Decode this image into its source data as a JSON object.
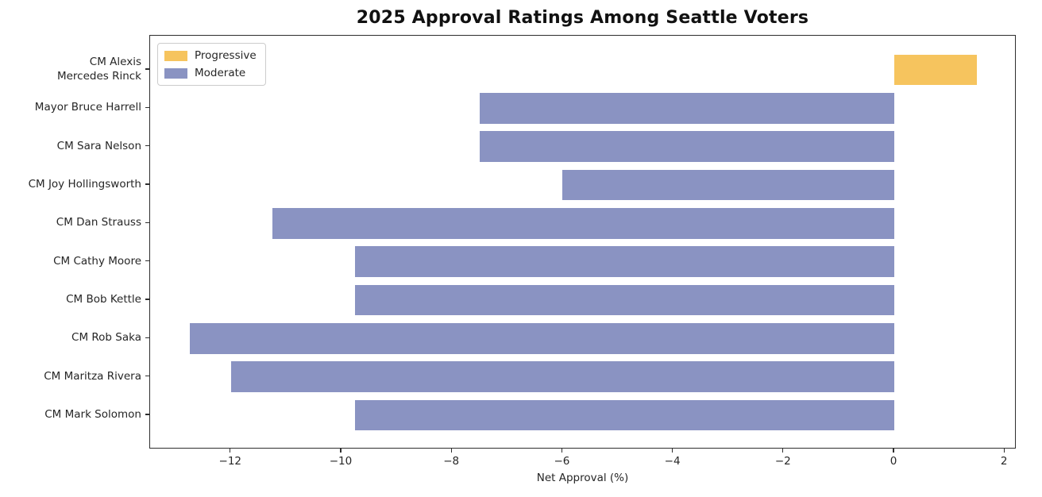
{
  "chart_data": {
    "type": "bar",
    "orientation": "horizontal",
    "title": "2025 Approval Ratings Among Seattle Voters",
    "xlabel": "Net Approval (%)",
    "ylabel": "",
    "categories": [
      "CM Alexis\nMercedes Rinck",
      "Mayor Bruce Harrell",
      "CM Sara Nelson",
      "CM Joy Hollingsworth",
      "CM Dan Strauss",
      "CM Cathy Moore",
      "CM Bob Kettle",
      "CM Rob Saka",
      "CM Maritza Rivera",
      "CM Mark Solomon"
    ],
    "values": [
      1.5,
      -7.5,
      -7.5,
      -6.0,
      -11.25,
      -9.75,
      -9.75,
      -12.75,
      -12.0,
      -9.75
    ],
    "bar_groups": [
      "Progressive",
      "Moderate",
      "Moderate",
      "Moderate",
      "Moderate",
      "Moderate",
      "Moderate",
      "Moderate",
      "Moderate",
      "Moderate"
    ],
    "xlim": [
      -13.4625,
      2.2125
    ],
    "xticks": [
      {
        "label": "−12",
        "value": -12
      },
      {
        "label": "−10",
        "value": -10
      },
      {
        "label": "−8",
        "value": -8
      },
      {
        "label": "−6",
        "value": -6
      },
      {
        "label": "−4",
        "value": -4
      },
      {
        "label": "−2",
        "value": -2
      },
      {
        "label": "0",
        "value": 0
      },
      {
        "label": "2",
        "value": 2
      }
    ],
    "grid": false,
    "legend": {
      "position": "upper left",
      "entries": [
        {
          "label": "Progressive",
          "color": "#F6C45E"
        },
        {
          "label": "Moderate",
          "color": "#8A93C2"
        }
      ]
    },
    "colors": {
      "progressive": "#F6C45E",
      "moderate": "#8A93C2",
      "axis": "#2e2e2e",
      "text": "#262626",
      "background": "#ffffff"
    }
  }
}
